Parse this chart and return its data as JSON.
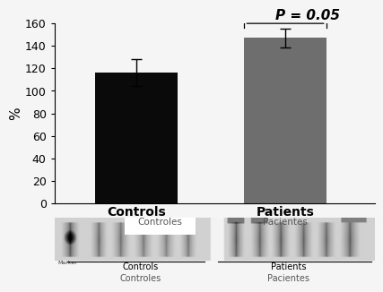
{
  "categories": [
    "Controls",
    "Patients"
  ],
  "values": [
    116,
    147
  ],
  "errors": [
    12,
    8
  ],
  "bar_colors": [
    "#0a0a0a",
    "#6e6e6e"
  ],
  "ylabel": "%",
  "ylim": [
    0,
    160
  ],
  "yticks": [
    0,
    20,
    40,
    60,
    80,
    100,
    120,
    140,
    160
  ],
  "pvalue_text": "P = 0.05",
  "pvalue_fontsize": 11,
  "tick_label_fontsize": 10,
  "axis_label_fontsize": 11,
  "xlabel_fontsize": 10,
  "bar_width": 0.55,
  "background_color": "#f5f5f5",
  "marker_text": "Marker",
  "blot_top_labels": [
    "Controles",
    "Pacientes"
  ],
  "blot_bottom_labels": [
    "Controls",
    "Patients"
  ],
  "blot_bottom_labels2": [
    "Controles",
    "Pacientes"
  ]
}
